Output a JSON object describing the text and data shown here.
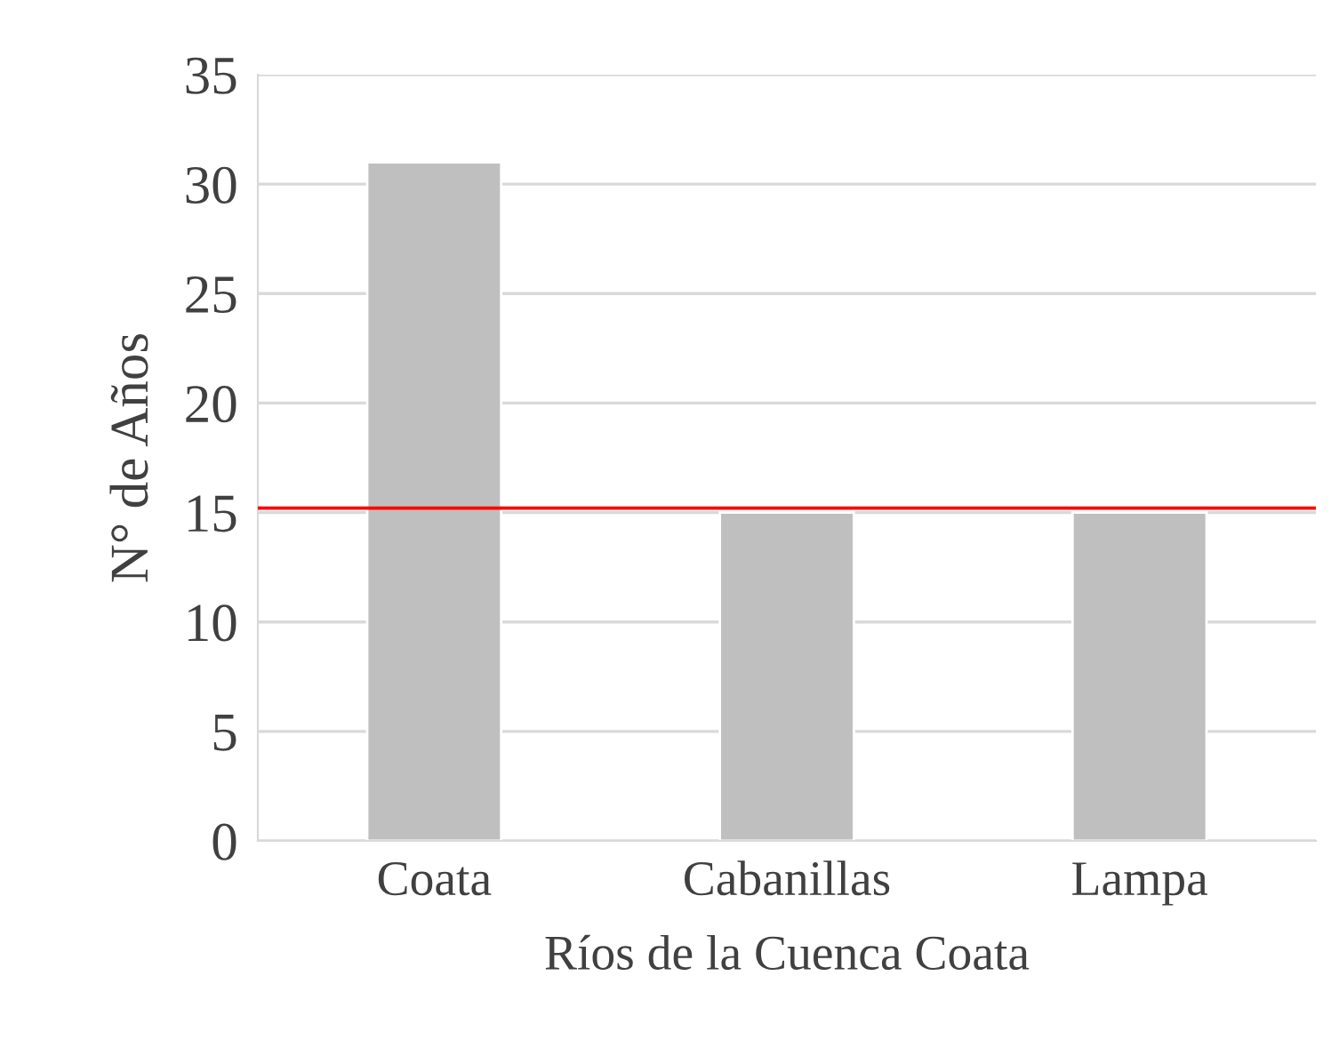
{
  "chart_data": {
    "type": "bar",
    "xlabel": "Ríos de la Cuenca Coata",
    "ylabel": "N° de Años",
    "categories": [
      "Coata",
      "Cabanillas",
      "Lampa"
    ],
    "values": [
      31,
      15,
      15
    ],
    "color": "#bfbfbf",
    "ylim": [
      0,
      35
    ],
    "yticks": [
      0,
      5,
      10,
      15,
      20,
      25,
      30,
      35
    ],
    "grid": "y",
    "ref_lines": [
      {
        "axis": "y",
        "value": 15.2,
        "color": "#ff0000"
      }
    ]
  }
}
